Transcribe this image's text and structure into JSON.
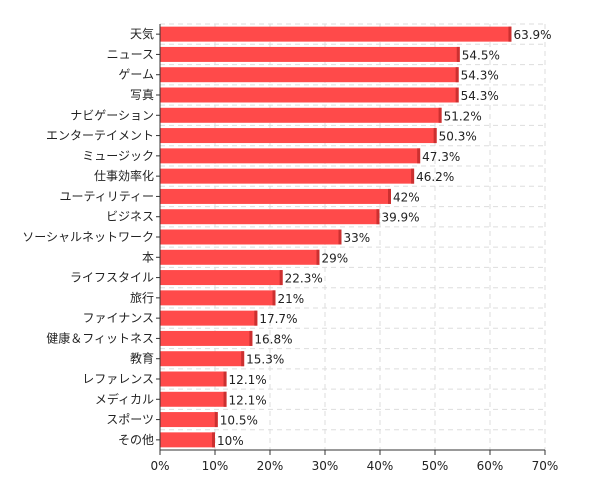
{
  "chart_data": {
    "type": "bar",
    "orientation": "horizontal",
    "categories": [
      "天気",
      "ニュース",
      "ゲーム",
      "写真",
      "ナビゲーション",
      "エンターテイメント",
      "ミュージック",
      "仕事効率化",
      "ユーティリティー",
      "ビジネス",
      "ソーシャルネットワーク",
      "本",
      "ライフスタイル",
      "旅行",
      "ファイナンス",
      "健康＆フィットネス",
      "教育",
      "レファレンス",
      "メディカル",
      "スポーツ",
      "その他"
    ],
    "values": [
      63.9,
      54.5,
      54.3,
      54.3,
      51.2,
      50.3,
      47.3,
      46.2,
      42,
      39.9,
      33,
      29,
      22.3,
      21,
      17.7,
      16.8,
      15.3,
      12.1,
      12.1,
      10.5,
      10
    ],
    "value_labels": [
      "63.9%",
      "54.5%",
      "54.3%",
      "54.3%",
      "51.2%",
      "50.3%",
      "47.3%",
      "46.2%",
      "42%",
      "39.9%",
      "33%",
      "29%",
      "22.3%",
      "21%",
      "17.7%",
      "16.8%",
      "15.3%",
      "12.1%",
      "12.1%",
      "10.5%",
      "10%"
    ],
    "x_ticks": [
      "0%",
      "10%",
      "20%",
      "30%",
      "40%",
      "50%",
      "60%",
      "70%"
    ],
    "xlim": [
      0,
      70
    ],
    "grid": true,
    "legend": "none",
    "colors": {
      "bar": "#ff4a4a",
      "bar_edge": "#cc3030",
      "grid": "#dddddd",
      "axis": "#333333"
    }
  }
}
